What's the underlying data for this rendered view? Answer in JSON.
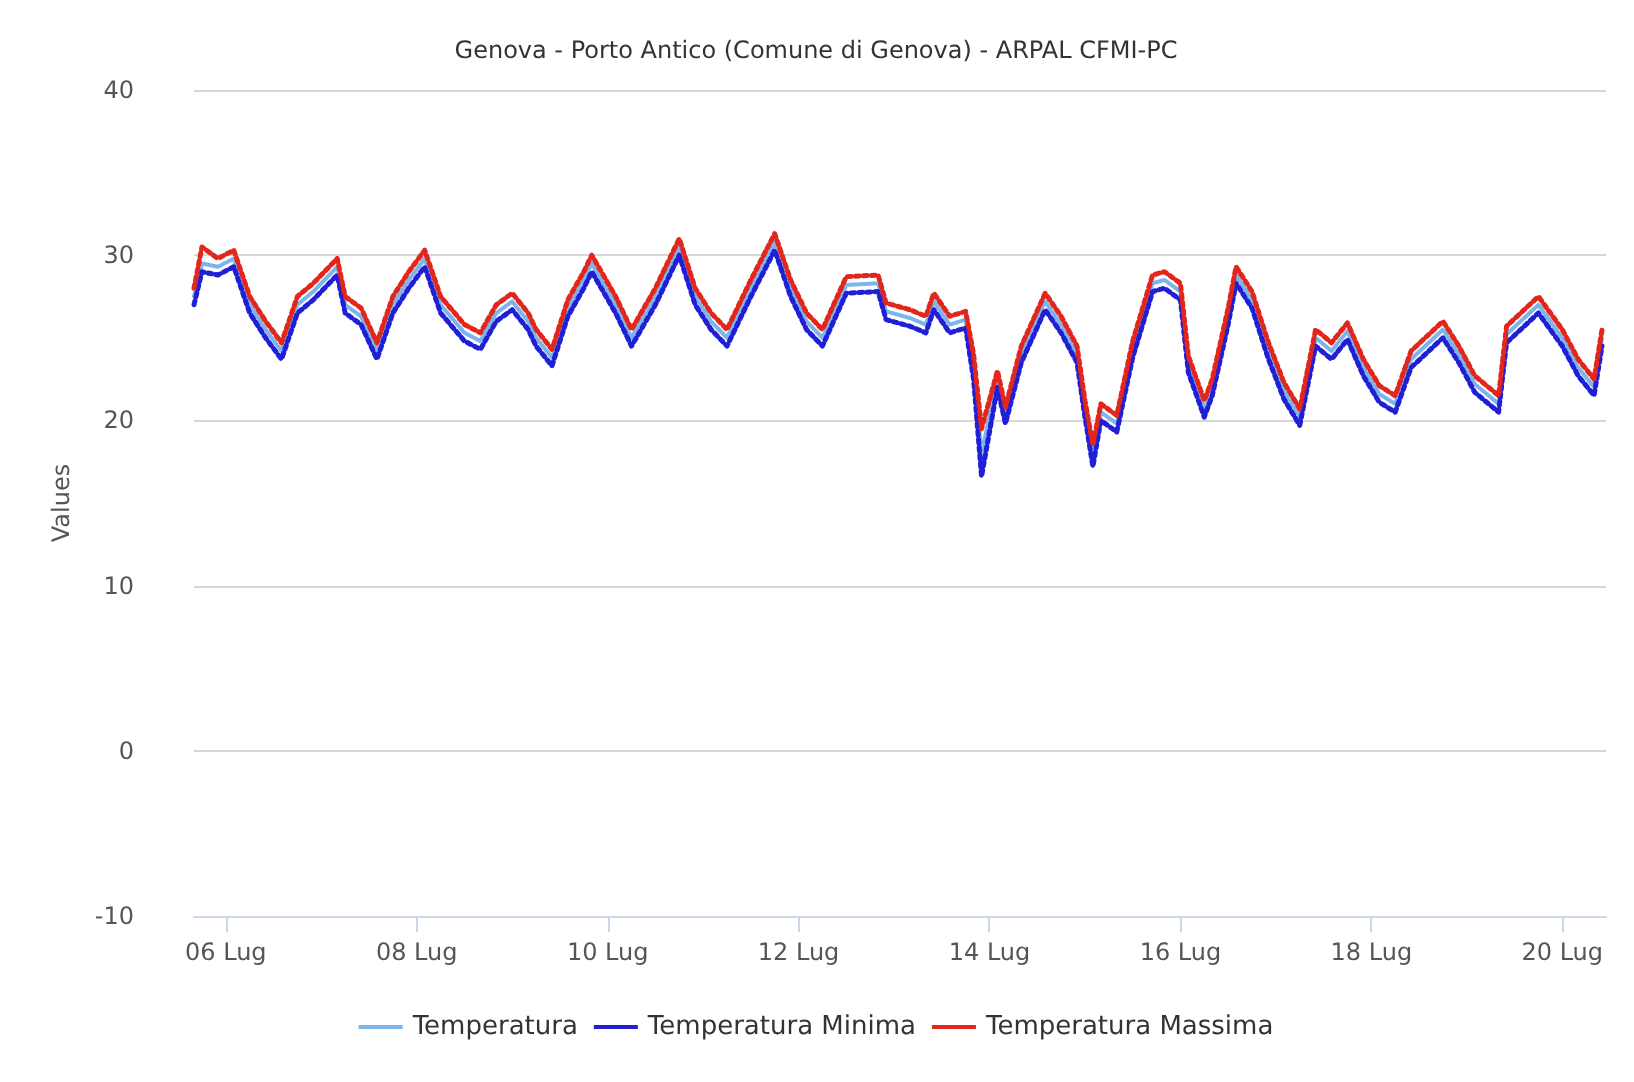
{
  "chart_data": {
    "type": "line",
    "title": "Genova - Porto Antico (Comune di Genova) - ARPAL CFMI-PC",
    "ylabel": "Values",
    "x": [
      "--07-05T16:00",
      "--07-05T18:00",
      "--07-05T22:00",
      "--07-06T02:00",
      "--07-06T06:00",
      "--07-06T10:00",
      "--07-06T14:00",
      "--07-06T18:00",
      "--07-06T22:00",
      "--07-07T04:00",
      "--07-07T06:00",
      "--07-07T10:00",
      "--07-07T14:00",
      "--07-07T18:00",
      "--07-07T22:00",
      "--07-08T02:00",
      "--07-08T06:00",
      "--07-08T12:00",
      "--07-08T16:00",
      "--07-08T20:00",
      "--07-09T00:00",
      "--07-09T04:00",
      "--07-09T06:00",
      "--07-09T10:00",
      "--07-09T14:00",
      "--07-09T18:00",
      "--07-09T20:00",
      "--07-10T02:00",
      "--07-10T06:00",
      "--07-10T12:00",
      "--07-10T18:00",
      "--07-10T22:00",
      "--07-11T02:00",
      "--07-11T06:00",
      "--07-11T12:00",
      "--07-11T18:00",
      "--07-11T22:00",
      "--07-12T02:00",
      "--07-12T06:00",
      "--07-12T12:00",
      "--07-12T20:00",
      "--07-12T22:00",
      "--07-13T04:00",
      "--07-13T08:00",
      "--07-13T10:00",
      "--07-13T14:00",
      "--07-13T18:00",
      "--07-13T20:00",
      "--07-13T22:00",
      "--07-14T02:00",
      "--07-14T04:00",
      "--07-14T08:00",
      "--07-14T14:00",
      "--07-14T18:00",
      "--07-14T22:00",
      "--07-15T00:00",
      "--07-15T02:00",
      "--07-15T04:00",
      "--07-15T08:00",
      "--07-15T12:00",
      "--07-15T17:00",
      "--07-15T20:00",
      "--07-16T00:00",
      "--07-16T02:00",
      "--07-16T06:00",
      "--07-16T08:00",
      "--07-16T12:00",
      "--07-16T14:00",
      "--07-16T18:00",
      "--07-16T22:00",
      "--07-17T02:00",
      "--07-17T06:00",
      "--07-17T10:00",
      "--07-17T14:00",
      "--07-17T18:00",
      "--07-17T22:00",
      "--07-18T02:00",
      "--07-18T06:00",
      "--07-18T10:00",
      "--07-18T18:00",
      "--07-18T22:00",
      "--07-19T02:00",
      "--07-19T08:00",
      "--07-19T10:00",
      "--07-19T18:00",
      "--07-20T00:00",
      "--07-20T04:00",
      "--07-20T08:00",
      "--07-20T10:00"
    ],
    "series": [
      {
        "name": "Temperatura",
        "color": "#7cb5ec",
        "line_style": "solid",
        "values": [
          27.5,
          29.5,
          29.3,
          29.8,
          27,
          25.5,
          24.2,
          27,
          27.8,
          29.3,
          27,
          26.3,
          24.2,
          27,
          28.5,
          29.8,
          27,
          25.3,
          24.8,
          26.5,
          27.2,
          26,
          25,
          23.8,
          26.8,
          28.5,
          29.5,
          27,
          25,
          27.5,
          30.5,
          27.5,
          26,
          25,
          28,
          30.8,
          28,
          26,
          25,
          28.2,
          28.3,
          26.6,
          26.2,
          25.8,
          27.2,
          25.8,
          26.1,
          23,
          18,
          22.5,
          20.3,
          24,
          27.2,
          25.8,
          24,
          20.7,
          17.8,
          20.5,
          19.8,
          24.3,
          28.3,
          28.5,
          27.8,
          23.4,
          20.7,
          22,
          26.3,
          28.8,
          27.3,
          24.3,
          21.8,
          20.2,
          25,
          24.2,
          25.4,
          23.2,
          21.6,
          21,
          23.7,
          25.5,
          24,
          22.2,
          21,
          25.2,
          27,
          25,
          23.2,
          22,
          25
        ]
      },
      {
        "name": "Temperatura Minima",
        "color": "#1f1fd6",
        "line_style": "dotted",
        "values": [
          27.0,
          29.0,
          28.8,
          29.3,
          26.5,
          25.0,
          23.7,
          26.5,
          27.3,
          28.8,
          26.5,
          25.8,
          23.7,
          26.5,
          28.0,
          29.3,
          26.5,
          24.8,
          24.3,
          26.0,
          26.7,
          25.5,
          24.5,
          23.3,
          26.3,
          28.0,
          29.0,
          26.5,
          24.5,
          27.0,
          30.0,
          27.0,
          25.5,
          24.5,
          27.5,
          30.3,
          27.5,
          25.5,
          24.5,
          27.7,
          27.8,
          26.1,
          25.7,
          25.3,
          26.7,
          25.3,
          25.6,
          22.5,
          16.6,
          22.0,
          19.8,
          23.5,
          26.7,
          25.3,
          23.5,
          20.2,
          17.2,
          20.0,
          19.3,
          23.8,
          27.8,
          28.0,
          27.3,
          22.9,
          20.2,
          21.5,
          25.8,
          28.3,
          26.8,
          23.8,
          21.3,
          19.7,
          24.5,
          23.7,
          24.9,
          22.7,
          21.1,
          20.5,
          23.2,
          25.0,
          23.5,
          21.7,
          20.5,
          24.7,
          26.5,
          24.5,
          22.7,
          21.5,
          24.5
        ]
      },
      {
        "name": "Temperatura Massima",
        "color": "#e3261c",
        "line_style": "dotted",
        "values": [
          28.0,
          30.5,
          29.8,
          30.3,
          27.5,
          26.0,
          24.7,
          27.5,
          28.3,
          29.8,
          27.5,
          26.8,
          24.7,
          27.5,
          29.0,
          30.3,
          27.5,
          25.8,
          25.3,
          27.0,
          27.7,
          26.5,
          25.5,
          24.3,
          27.3,
          29.0,
          30.0,
          27.5,
          25.5,
          28.0,
          31.0,
          28.0,
          26.5,
          25.5,
          28.5,
          31.3,
          28.5,
          26.5,
          25.5,
          28.7,
          28.8,
          27.1,
          26.7,
          26.3,
          27.7,
          26.3,
          26.6,
          24.0,
          19.5,
          23.0,
          20.8,
          24.5,
          27.7,
          26.3,
          24.5,
          21.2,
          18.5,
          21.0,
          20.3,
          24.8,
          28.8,
          29.0,
          28.3,
          23.9,
          21.2,
          22.5,
          26.8,
          29.3,
          27.8,
          24.8,
          22.3,
          20.7,
          25.5,
          24.7,
          25.9,
          23.7,
          22.1,
          21.5,
          24.2,
          26.0,
          24.5,
          22.7,
          21.5,
          25.7,
          27.5,
          25.5,
          23.7,
          22.5,
          25.5
        ]
      }
    ],
    "xlim": [
      "--07-05T16:00",
      "--07-20T11:00"
    ],
    "xticks": [
      {
        "value": "--07-06",
        "label": "06 Lug"
      },
      {
        "value": "--07-08",
        "label": "08 Lug"
      },
      {
        "value": "--07-10",
        "label": "10 Lug"
      },
      {
        "value": "--07-12",
        "label": "12 Lug"
      },
      {
        "value": "--07-14",
        "label": "14 Lug"
      },
      {
        "value": "--07-16",
        "label": "16 Lug"
      },
      {
        "value": "--07-18",
        "label": "18 Lug"
      },
      {
        "value": "--07-20",
        "label": "20 Lug"
      }
    ],
    "ylim": [
      -10,
      40
    ],
    "yticks": [
      -10,
      0,
      10,
      20,
      30,
      40
    ],
    "grid": "y",
    "legend": "bottom",
    "marker": "none"
  }
}
